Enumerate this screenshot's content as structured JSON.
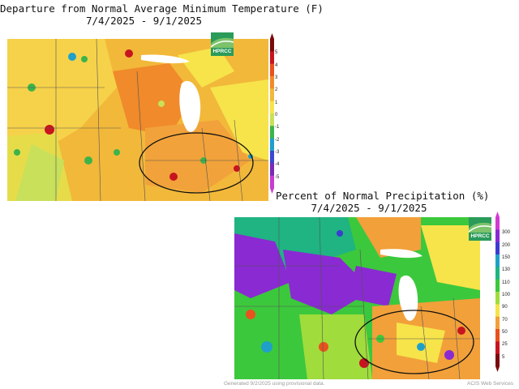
{
  "temperature_map": {
    "title_line1": "Departure from Normal Average Minimum Temperature (F)",
    "title_line2": "7/4/2025 - 9/1/2025",
    "logo_text": "HPRCC",
    "scale_labels": [
      "5",
      "4",
      "3",
      "2",
      "1",
      "0",
      "-1",
      "-2",
      "-3",
      "-4",
      "-5"
    ],
    "scale_colors": [
      "#7a0a0a",
      "#c8141e",
      "#e8521e",
      "#f08a2a",
      "#f2b83a",
      "#f6e44a",
      "#c8e05a",
      "#3cb44a",
      "#1fa0c8",
      "#3c46d2",
      "#7a2ab4",
      "#c83cd2"
    ],
    "region_highlight": "ellipse-ohio-valley"
  },
  "precipitation_map": {
    "title_line1": "Percent of Normal Precipitation (%)",
    "title_line2": "7/4/2025 - 9/1/2025",
    "logo_text": "HPRCC",
    "scale_labels": [
      "300",
      "200",
      "150",
      "130",
      "110",
      "100",
      "90",
      "70",
      "50",
      "25",
      "5"
    ],
    "scale_colors": [
      "#d23cd2",
      "#8a2ad2",
      "#3c3cd2",
      "#1fa0c8",
      "#1fb482",
      "#3cc83c",
      "#a0dc3c",
      "#f6e44a",
      "#f2a03a",
      "#e8521e",
      "#c8141e",
      "#7a0a0a"
    ],
    "region_highlight": "ellipse-ohio-valley"
  },
  "footer": {
    "generated": "Generated 9/2/2025 using provisional data.",
    "source": "ACIS Web Services"
  }
}
